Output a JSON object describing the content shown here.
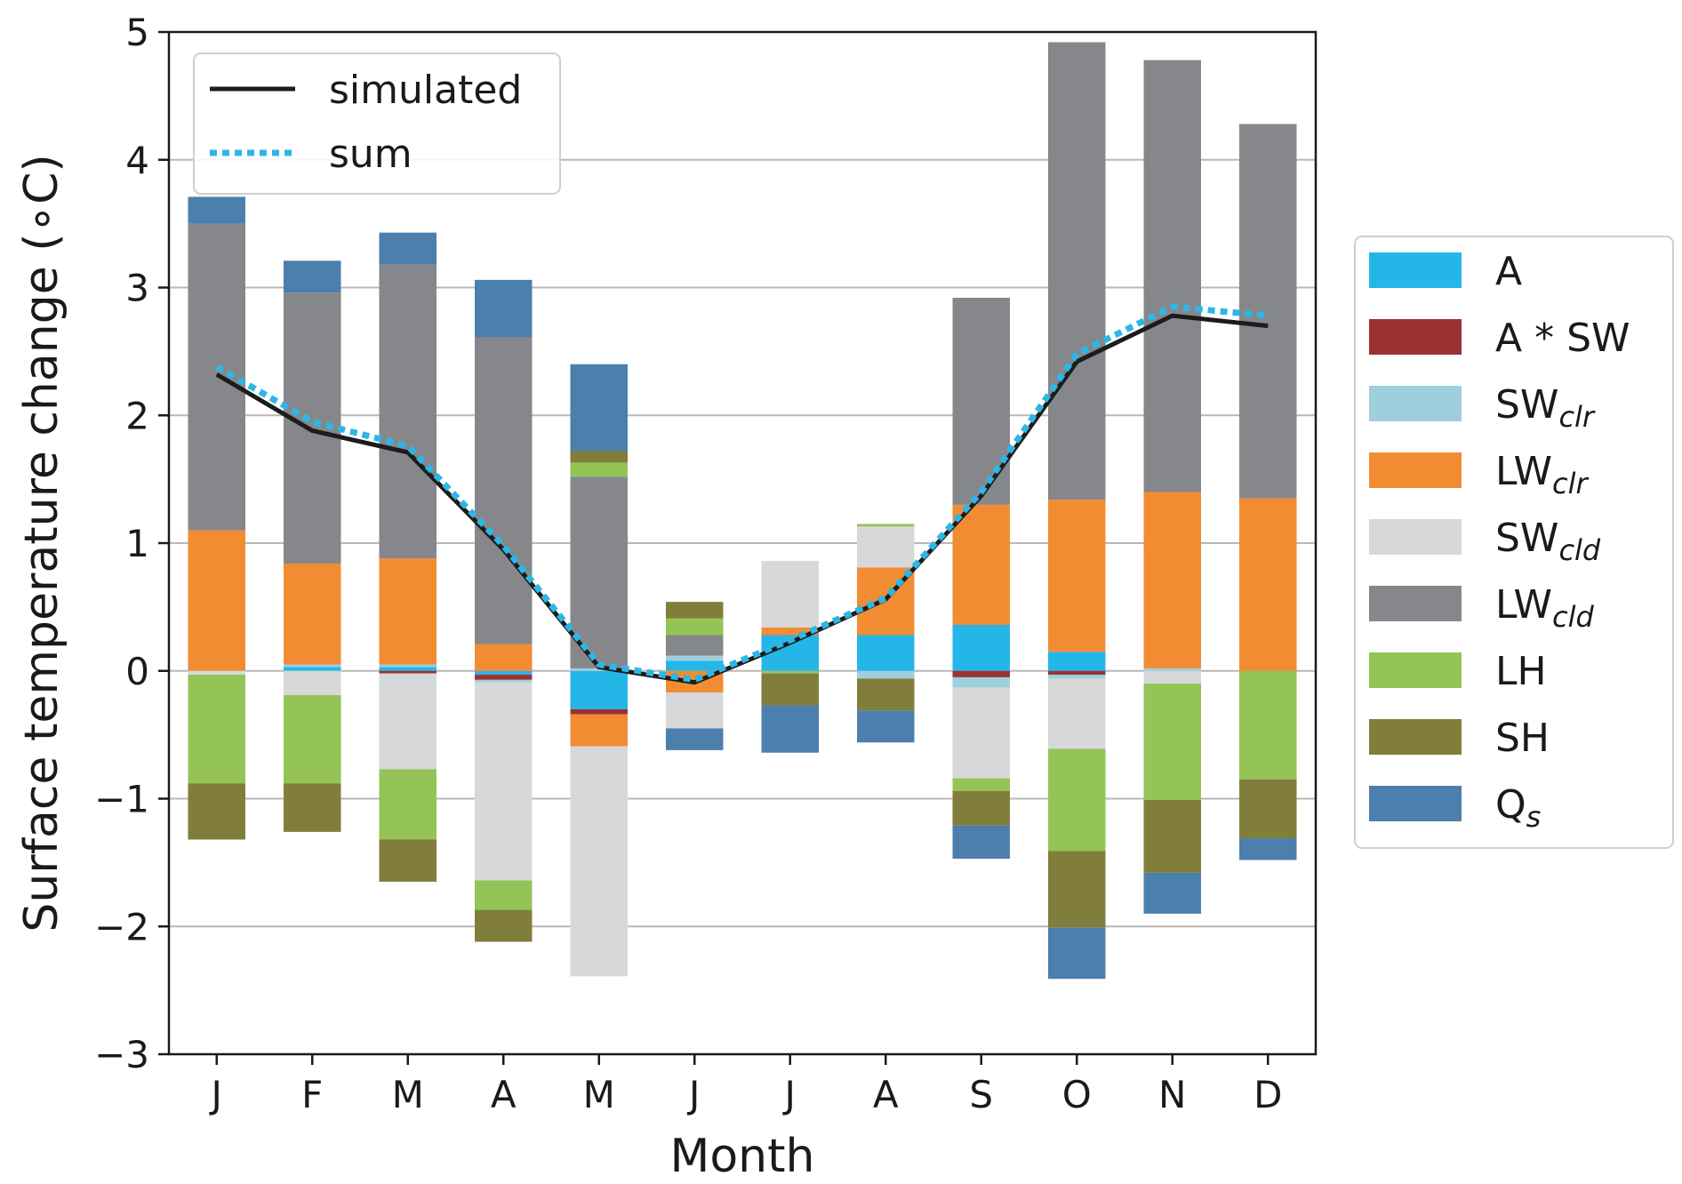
{
  "chart_data": {
    "type": "bar",
    "stacked": true,
    "title": "",
    "xlabel": "Month",
    "ylabel": "Surface temperature change (∘C)",
    "ylim": [
      -3,
      5
    ],
    "yticks": [
      -3,
      -2,
      -1,
      0,
      1,
      2,
      3,
      4,
      5
    ],
    "ytick_labels": [
      "−3",
      "−2",
      "−1",
      "0",
      "1",
      "2",
      "3",
      "4",
      "5"
    ],
    "grid": "horizontal",
    "categories": [
      "J",
      "F",
      "M",
      "A",
      "M",
      "J",
      "J",
      "A",
      "S",
      "O",
      "N",
      "D"
    ],
    "series": [
      {
        "name": "A",
        "label_main": "A",
        "label_sub": "",
        "color": "#25b6e8",
        "values": [
          0.0,
          0.03,
          0.03,
          -0.03,
          -0.3,
          0.08,
          0.28,
          0.28,
          0.36,
          0.15,
          0.0,
          0.0
        ]
      },
      {
        "name": "A * SW",
        "label_main": "A * SW",
        "label_sub": "",
        "color": "#9b3232",
        "values": [
          0.0,
          0.0,
          -0.02,
          -0.04,
          -0.04,
          0.0,
          0.0,
          0.0,
          -0.05,
          -0.03,
          0.0,
          0.0
        ]
      },
      {
        "name": "SW_clr",
        "label_main": "SW",
        "label_sub": "clr",
        "color": "#9fcfdd",
        "values": [
          0.0,
          0.02,
          0.02,
          -0.02,
          0.02,
          0.04,
          0.0,
          -0.06,
          -0.08,
          -0.03,
          0.02,
          0.0
        ]
      },
      {
        "name": "LW_clr",
        "label_main": "LW",
        "label_sub": "clr",
        "color": "#f28c33",
        "values": [
          1.1,
          0.79,
          0.83,
          0.21,
          -0.25,
          -0.17,
          0.06,
          0.53,
          0.94,
          1.19,
          1.38,
          1.35
        ]
      },
      {
        "name": "SW_cld",
        "label_main": "SW",
        "label_sub": "cld",
        "color": "#d7d8d9",
        "values": [
          -0.03,
          -0.19,
          -0.75,
          -1.55,
          -1.8,
          -0.28,
          0.52,
          0.32,
          -0.71,
          -0.55,
          -0.1,
          0.0
        ]
      },
      {
        "name": "LW_cld",
        "label_main": "LW",
        "label_sub": "cld",
        "color": "#86878a",
        "values": [
          2.4,
          2.12,
          2.3,
          2.4,
          1.5,
          0.16,
          0.0,
          0.0,
          1.62,
          3.58,
          3.38,
          2.93
        ]
      },
      {
        "name": "LH",
        "label_main": "LH",
        "label_sub": "",
        "color": "#93c455",
        "values": [
          -0.85,
          -0.69,
          -0.55,
          -0.23,
          0.11,
          0.13,
          -0.02,
          0.02,
          -0.1,
          -0.8,
          -0.91,
          -0.85
        ]
      },
      {
        "name": "SH",
        "label_main": "SH",
        "label_sub": "",
        "color": "#817e3b",
        "values": [
          -0.44,
          -0.38,
          -0.33,
          -0.25,
          0.09,
          0.13,
          -0.25,
          -0.25,
          -0.27,
          -0.6,
          -0.57,
          -0.46
        ]
      },
      {
        "name": "Q_s",
        "label_main": "Q",
        "label_sub": "s",
        "color": "#4c7fac",
        "values": [
          0.21,
          0.25,
          0.25,
          0.45,
          0.68,
          -0.17,
          -0.37,
          -0.25,
          -0.26,
          -0.4,
          -0.32,
          -0.17
        ]
      }
    ],
    "lines": [
      {
        "name": "simulated",
        "label": "simulated",
        "color": "#1c1c1c",
        "style": "solid",
        "values": [
          2.32,
          1.88,
          1.71,
          0.95,
          0.03,
          -0.09,
          0.22,
          0.56,
          1.37,
          2.42,
          2.78,
          2.7
        ]
      },
      {
        "name": "sum",
        "label": "sum",
        "color": "#2db7e6",
        "style": "dotted",
        "values": [
          2.38,
          1.95,
          1.76,
          0.98,
          0.05,
          -0.07,
          0.24,
          0.57,
          1.4,
          2.48,
          2.85,
          2.78
        ]
      }
    ],
    "legend_lines_position": "upper-left",
    "legend_bars_position": "right-outside"
  }
}
